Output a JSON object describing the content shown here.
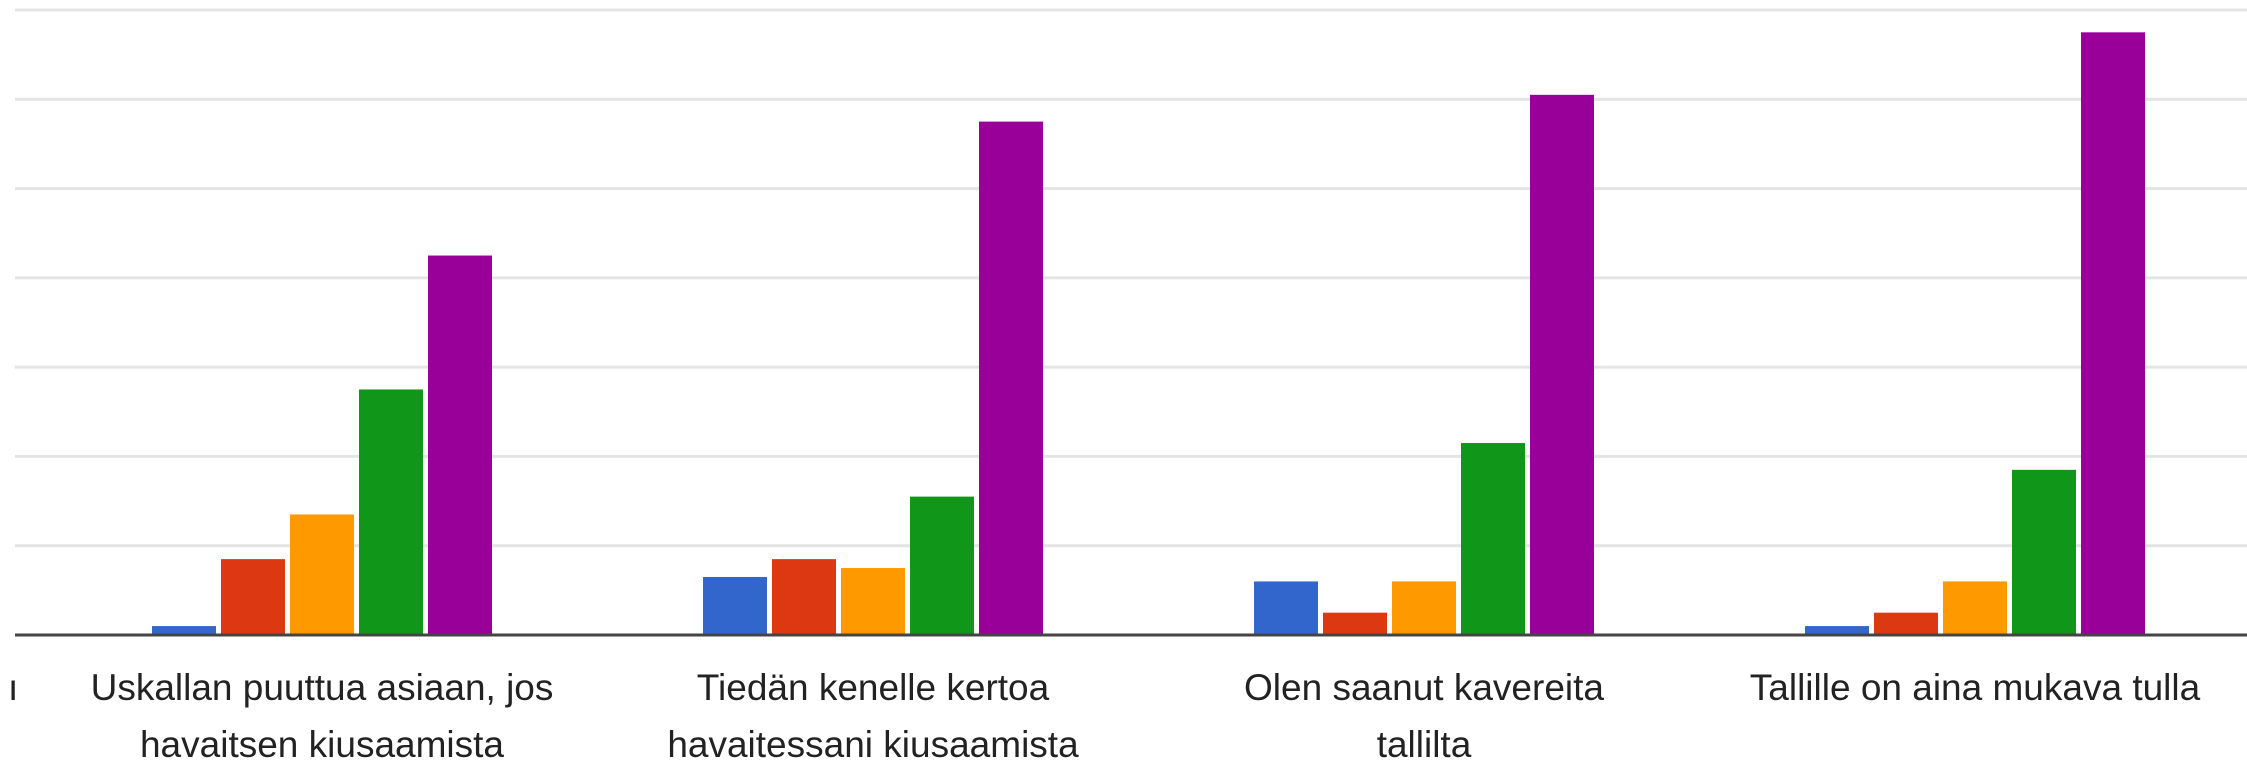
{
  "chart_data": {
    "type": "bar",
    "categories": [
      [
        "Uskallan puuttua asiaan, jos",
        "havaitsen kiusaamista"
      ],
      [
        "Tiedän kenelle kertoa",
        "havaitessani kiusaamista"
      ],
      [
        "Olen saanut kavereita",
        "tallilta"
      ],
      [
        "Tallille on aina mukava tulla"
      ]
    ],
    "series": [
      {
        "color": "#3366cc",
        "values": [
          1,
          6.5,
          6,
          1
        ]
      },
      {
        "color": "#dc3912",
        "values": [
          8.5,
          8.5,
          2.5,
          2.5
        ]
      },
      {
        "color": "#ff9900",
        "values": [
          13.5,
          7.5,
          6,
          6
        ]
      },
      {
        "color": "#109618",
        "values": [
          27.5,
          15.5,
          21.5,
          18.5
        ]
      },
      {
        "color": "#990099",
        "values": [
          42.5,
          57.5,
          60.5,
          67.5
        ]
      }
    ],
    "ylim": [
      0,
      70
    ],
    "gridlines": [
      10,
      20,
      30,
      40,
      50,
      60,
      70
    ],
    "grid": true,
    "legend": "none",
    "left_cut_label": "ı"
  }
}
